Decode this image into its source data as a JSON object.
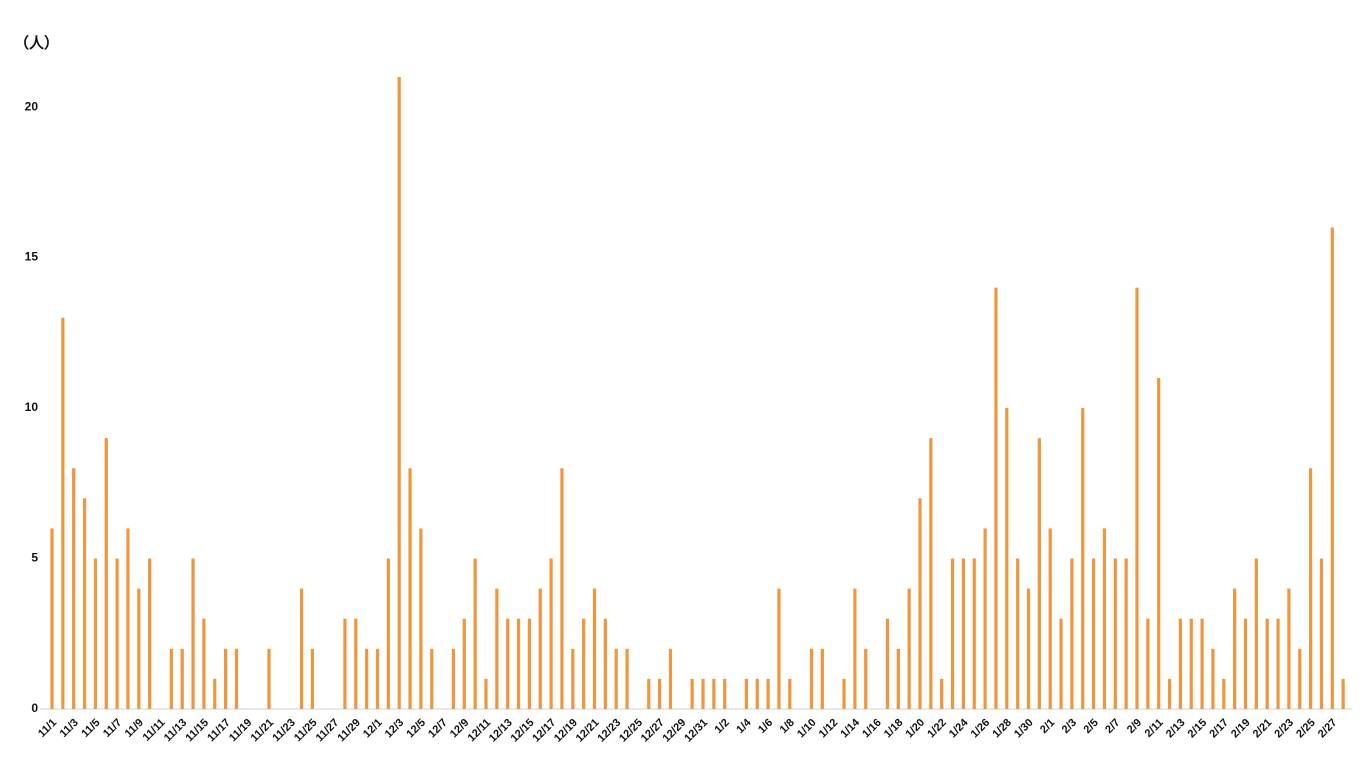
{
  "chart_data": {
    "type": "bar",
    "unit_label": "（人）",
    "color": "#f0963c",
    "categories": [
      "11/1",
      null,
      "11/3",
      null,
      "11/5",
      null,
      "11/7",
      null,
      "11/9",
      null,
      "11/11",
      null,
      "11/13",
      null,
      "11/15",
      null,
      "11/17",
      null,
      "11/19",
      null,
      "11/21",
      null,
      "11/23",
      null,
      "11/25",
      null,
      "11/27",
      null,
      "11/29",
      null,
      "12/1",
      null,
      "12/3",
      null,
      "12/5",
      null,
      "12/7",
      null,
      "12/9",
      null,
      "12/11",
      null,
      "12/13",
      null,
      "12/15",
      null,
      "12/17",
      null,
      "12/19",
      null,
      "12/21",
      null,
      "12/23",
      null,
      "12/25",
      null,
      "12/27",
      null,
      "12/29",
      null,
      "12/31",
      null,
      "1/2",
      null,
      "1/4",
      null,
      "1/6",
      null,
      "1/8",
      null,
      "1/10",
      null,
      "1/12",
      null,
      "1/14",
      null,
      "1/16",
      null,
      "1/18",
      null,
      "1/20",
      null,
      "1/22",
      null,
      "1/24",
      null,
      "1/26",
      null,
      "1/28",
      null,
      "1/30",
      null,
      "2/1",
      null,
      "2/3",
      null,
      "2/5",
      null,
      "2/7",
      null,
      "2/9",
      null,
      "2/11",
      null,
      "2/13",
      null,
      "2/15",
      null,
      "2/17",
      null,
      "2/19",
      null,
      "2/21",
      null,
      "2/23",
      null,
      "2/25",
      null,
      "2/27",
      null
    ],
    "values": [
      6,
      13,
      8,
      7,
      5,
      9,
      5,
      6,
      4,
      5,
      0,
      2,
      2,
      5,
      3,
      1,
      2,
      2,
      0,
      0,
      2,
      0,
      0,
      4,
      2,
      0,
      0,
      3,
      3,
      2,
      2,
      5,
      21,
      8,
      6,
      2,
      0,
      2,
      3,
      5,
      1,
      4,
      3,
      3,
      3,
      4,
      5,
      8,
      2,
      3,
      4,
      3,
      2,
      2,
      0,
      1,
      1,
      2,
      0,
      1,
      1,
      1,
      1,
      0,
      1,
      1,
      1,
      4,
      1,
      0,
      2,
      2,
      0,
      1,
      4,
      2,
      0,
      3,
      2,
      4,
      7,
      9,
      1,
      5,
      5,
      5,
      6,
      14,
      10,
      5,
      4,
      9,
      6,
      3,
      5,
      10,
      5,
      6,
      5,
      5,
      14,
      3,
      11,
      1,
      3,
      3,
      3,
      2,
      1,
      4,
      3,
      5,
      3,
      3,
      4,
      2,
      8,
      5,
      16,
      1
    ],
    "ylim": [
      0,
      21
    ],
    "yticks": [
      0,
      5,
      10,
      15,
      20
    ],
    "grid": false
  }
}
